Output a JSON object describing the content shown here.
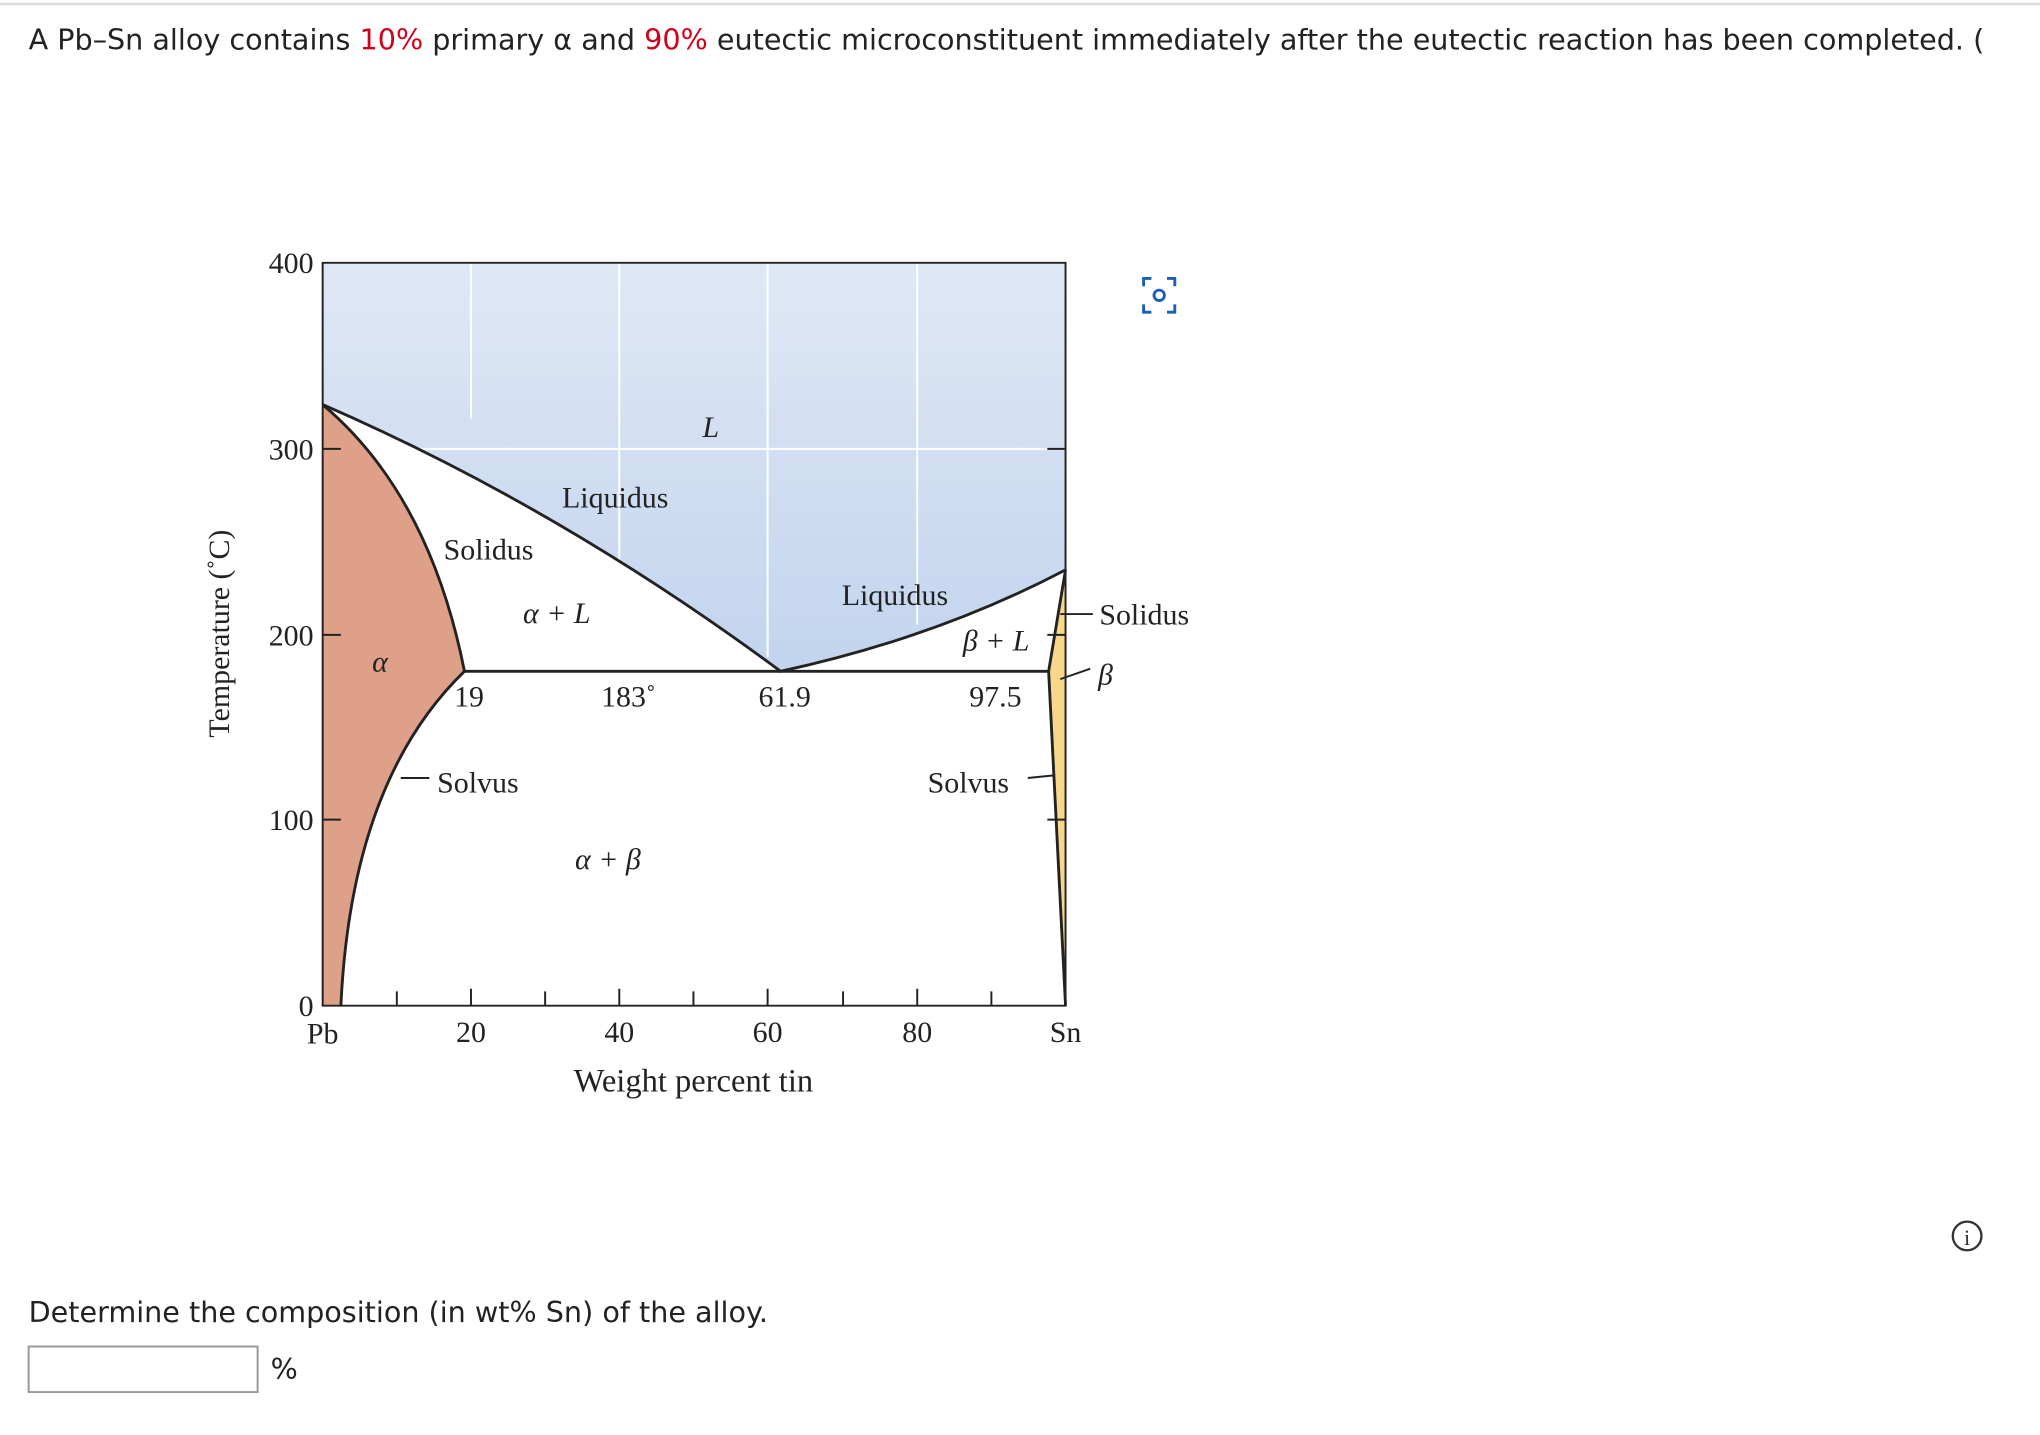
{
  "question": {
    "prefix": "A Pb–Sn alloy contains ",
    "alpha_pct": "10%",
    "middle": " primary α and ",
    "eutectic_pct": "90%",
    "suffix": " eutectic microconstituent immediately after the eutectic reaction has been completed. ("
  },
  "figure": {
    "y_axis_label": "Temperature (˚C)",
    "y_ticks": [
      "400",
      "300",
      "200",
      "100",
      "0"
    ],
    "x_ticks": [
      "Pb",
      "20",
      "40",
      "60",
      "80",
      "Sn"
    ],
    "x_axis_label": "Weight percent tin",
    "regions": {
      "liquid": "L",
      "alpha_liquid": "α + L",
      "beta_liquid": "β + L",
      "alpha": "α",
      "beta": "β",
      "alpha_beta": "α + β"
    },
    "curves": {
      "liquidus_left": "Liquidus",
      "liquidus_right": "Liquidus",
      "solidus_left": "Solidus",
      "solidus_right": "Solidus",
      "solvus_left": "Solvus",
      "solvus_right": "Solvus"
    },
    "points": {
      "alpha_max": "19",
      "eutectic_temp": "183˚",
      "eutectic_comp": "61.9",
      "beta_max": "97.5"
    }
  },
  "prompt": "Determine the composition (in wt% Sn) of the alloy.",
  "answer": {
    "unit": "%"
  }
}
